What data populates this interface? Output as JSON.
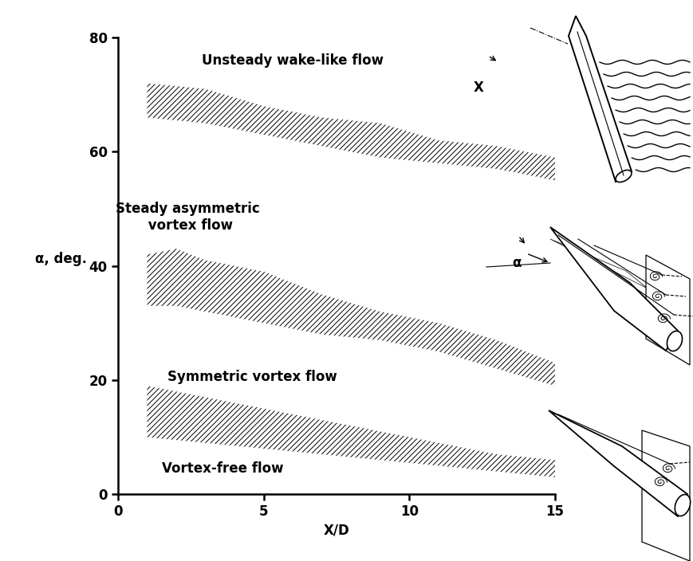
{
  "chart_data": {
    "type": "band",
    "xlabel": "X/D",
    "ylabel": "α, deg.",
    "xlim": [
      0,
      15
    ],
    "ylim": [
      0,
      80
    ],
    "xticks": [
      0,
      5,
      10,
      15
    ],
    "yticks": [
      0,
      20,
      40,
      60,
      80
    ],
    "grid": false,
    "color": "#000000",
    "bands": [
      {
        "x": [
          1,
          3,
          5,
          7,
          9,
          11,
          13,
          15
        ],
        "lower": [
          66,
          65,
          63,
          61,
          59,
          58,
          57,
          55
        ],
        "upper": [
          72,
          71,
          68,
          66,
          65,
          62,
          61,
          59
        ]
      },
      {
        "x": [
          1,
          2,
          3,
          5,
          7,
          9,
          11,
          13,
          15
        ],
        "lower": [
          33,
          33,
          32,
          30,
          28,
          27,
          25,
          22,
          19
        ],
        "upper": [
          42,
          43,
          41,
          39,
          35,
          32,
          30,
          27,
          23
        ]
      },
      {
        "x": [
          1,
          3,
          5,
          7,
          9,
          11,
          13,
          15
        ],
        "lower": [
          10,
          9,
          8,
          7,
          6,
          5,
          4,
          3
        ],
        "upper": [
          19,
          17,
          15,
          13,
          11,
          9,
          7,
          6
        ]
      }
    ],
    "annotations": [
      "Unsteady wake-like flow",
      "Steady asymmetric\n vortex flow",
      "Symmetric vortex flow",
      "Vortex-free flow"
    ],
    "sketch_labels": [
      "X",
      "α"
    ]
  }
}
